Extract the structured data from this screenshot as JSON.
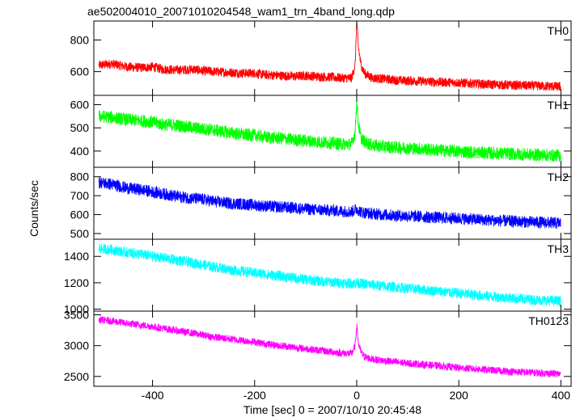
{
  "chart_data": {
    "type": "line",
    "title": "ae502004010_20071010204548_wam1_trn_4band_long.qdp",
    "xlabel": "Time [sec] 0 = 2007/10/10 20:45:48",
    "ylabel": "Counts/sec",
    "xlim": [
      -515,
      420
    ],
    "xticks": [
      -400,
      -200,
      0,
      200,
      400
    ],
    "grid": false,
    "panels": [
      {
        "name": "TH0",
        "color": "#ff0000",
        "ylim": [
          450,
          920
        ],
        "yticks": [
          600,
          800
        ],
        "series": {
          "x": [
            -505,
            -480,
            -450,
            -420,
            -400,
            -380,
            -350,
            -320,
            -300,
            -280,
            -250,
            -220,
            -200,
            -180,
            -150,
            -120,
            -100,
            -80,
            -50,
            -30,
            -10,
            -3,
            0,
            3,
            8,
            15,
            30,
            50,
            80,
            120,
            150,
            200,
            250,
            300,
            350,
            400
          ],
          "y": [
            640,
            650,
            630,
            625,
            630,
            615,
            610,
            615,
            605,
            600,
            595,
            590,
            590,
            580,
            575,
            570,
            575,
            570,
            565,
            560,
            560,
            640,
            920,
            760,
            650,
            590,
            560,
            555,
            545,
            540,
            535,
            530,
            520,
            515,
            510,
            505
          ],
          "noise": 30
        }
      },
      {
        "name": "TH1",
        "color": "#00ff00",
        "ylim": [
          330,
          640
        ],
        "yticks": [
          400,
          500,
          600
        ],
        "series": {
          "x": [
            -505,
            -480,
            -450,
            -420,
            -400,
            -380,
            -350,
            -320,
            -300,
            -280,
            -250,
            -220,
            -200,
            -180,
            -150,
            -120,
            -100,
            -80,
            -50,
            -30,
            -10,
            -3,
            0,
            3,
            8,
            15,
            30,
            50,
            80,
            120,
            150,
            200,
            250,
            300,
            350,
            400
          ],
          "y": [
            550,
            545,
            535,
            530,
            525,
            515,
            510,
            500,
            495,
            490,
            480,
            470,
            468,
            460,
            455,
            448,
            445,
            440,
            435,
            430,
            430,
            480,
            625,
            520,
            460,
            440,
            425,
            420,
            415,
            410,
            405,
            398,
            392,
            388,
            384,
            380
          ],
          "noise": 28
        }
      },
      {
        "name": "TH2",
        "color": "#0000ff",
        "ylim": [
          470,
          850
        ],
        "yticks": [
          500,
          600,
          700,
          800
        ],
        "series": {
          "x": [
            -505,
            -480,
            -450,
            -420,
            -400,
            -380,
            -350,
            -320,
            -300,
            -280,
            -250,
            -220,
            -200,
            -180,
            -150,
            -120,
            -100,
            -80,
            -50,
            -30,
            -10,
            0,
            10,
            30,
            50,
            80,
            120,
            150,
            200,
            250,
            300,
            350,
            400
          ],
          "y": [
            770,
            760,
            740,
            730,
            720,
            710,
            695,
            685,
            680,
            670,
            660,
            655,
            650,
            645,
            640,
            635,
            630,
            625,
            622,
            618,
            615,
            630,
            612,
            605,
            600,
            595,
            590,
            585,
            580,
            572,
            565,
            560,
            555
          ],
          "noise": 32
        }
      },
      {
        "name": "TH3",
        "color": "#00ffff",
        "ylim": [
          985,
          1530
        ],
        "yticks": [
          1000,
          1200,
          1400
        ],
        "series": {
          "x": [
            -505,
            -480,
            -450,
            -420,
            -400,
            -380,
            -350,
            -320,
            -300,
            -280,
            -250,
            -220,
            -200,
            -180,
            -150,
            -120,
            -100,
            -80,
            -50,
            -30,
            -10,
            0,
            10,
            30,
            50,
            80,
            120,
            150,
            200,
            250,
            300,
            350,
            400
          ],
          "y": [
            1460,
            1450,
            1430,
            1415,
            1400,
            1390,
            1370,
            1350,
            1335,
            1320,
            1300,
            1285,
            1275,
            1265,
            1250,
            1235,
            1225,
            1215,
            1205,
            1200,
            1195,
            1200,
            1192,
            1185,
            1175,
            1165,
            1150,
            1140,
            1120,
            1100,
            1085,
            1070,
            1060
          ],
          "noise": 40
        }
      },
      {
        "name": "TH0123",
        "color": "#ff00ff",
        "ylim": [
          2340,
          3560
        ],
        "yticks": [
          2500,
          3000,
          3500
        ],
        "series": {
          "x": [
            -505,
            -480,
            -450,
            -420,
            -400,
            -380,
            -350,
            -320,
            -300,
            -280,
            -250,
            -220,
            -200,
            -180,
            -150,
            -120,
            -100,
            -80,
            -50,
            -30,
            -10,
            -3,
            0,
            3,
            8,
            15,
            30,
            50,
            80,
            120,
            150,
            200,
            250,
            300,
            350,
            400
          ],
          "y": [
            3420,
            3400,
            3360,
            3330,
            3310,
            3280,
            3240,
            3200,
            3170,
            3140,
            3110,
            3080,
            3060,
            3030,
            3000,
            2970,
            2950,
            2930,
            2900,
            2880,
            2870,
            3000,
            3340,
            3050,
            2900,
            2820,
            2780,
            2760,
            2730,
            2700,
            2680,
            2640,
            2610,
            2580,
            2560,
            2540
          ],
          "noise": 60
        }
      }
    ]
  }
}
